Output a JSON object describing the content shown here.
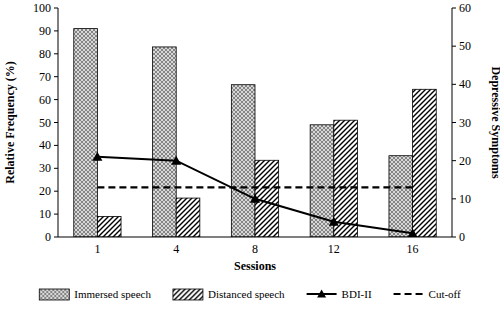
{
  "chart_data": {
    "type": "bar",
    "categories": [
      "1",
      "4",
      "8",
      "12",
      "16"
    ],
    "x_label": "Sessions",
    "y_label": "Relative Frequency (%)",
    "y2_label": "Depressive Symptoms",
    "ylim": [
      0,
      100
    ],
    "yticks": [
      0,
      10,
      20,
      30,
      40,
      50,
      60,
      70,
      80,
      90,
      100
    ],
    "y2lim": [
      0,
      60
    ],
    "y2ticks": [
      0,
      10,
      20,
      30,
      40,
      50,
      60
    ],
    "grid": false,
    "legend": "bottom",
    "series": [
      {
        "name": "Immersed speech",
        "type": "bar",
        "color": "#7a7a7a",
        "values": [
          91,
          83,
          66.5,
          49,
          35.5
        ]
      },
      {
        "name": "Distanced speech",
        "type": "bar",
        "color": "#000000",
        "values": [
          9,
          17,
          33.5,
          51,
          64.5
        ]
      },
      {
        "name": "BDI-II",
        "type": "line",
        "axis": "y2",
        "color": "#000000",
        "marker": "triangle",
        "line_style": "solid",
        "values": [
          21,
          20,
          10,
          4,
          1
        ]
      },
      {
        "name": "Cut-off",
        "type": "line",
        "axis": "y2",
        "color": "#000000",
        "marker": "none",
        "line_style": "dashed",
        "values": [
          13,
          13,
          13,
          13,
          13
        ]
      }
    ]
  }
}
